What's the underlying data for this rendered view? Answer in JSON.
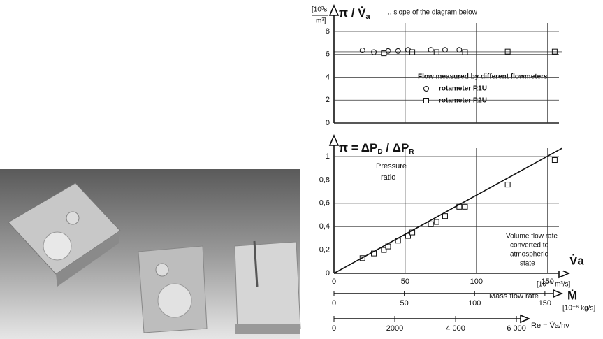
{
  "chart_data": [
    {
      "type": "scatter",
      "title_parts": [
        "π / V̇",
        "a"
      ],
      "subtitle": ".. slope of the diagram below",
      "y_unit_parts": [
        "[10³s",
        "m³]"
      ],
      "legend_title": "Flow measured by different flowmeters",
      "xlim": [
        0,
        158
      ],
      "xticks": [
        0,
        50,
        100,
        150
      ],
      "ylim": [
        0,
        8
      ],
      "yticks": [
        0,
        2,
        4,
        6,
        8
      ],
      "grid": true,
      "series": [
        {
          "name": "rotameter R1U",
          "marker": "circle",
          "color": "#111",
          "x": [
            20,
            28,
            38,
            45,
            52,
            68,
            78,
            88
          ],
          "y": [
            6.35,
            6.2,
            6.3,
            6.3,
            6.4,
            6.4,
            6.4,
            6.4
          ]
        },
        {
          "name": "rotameter R2U",
          "marker": "square",
          "color": "#111",
          "x": [
            35,
            55,
            72,
            92,
            122,
            155
          ],
          "y": [
            6.1,
            6.2,
            6.2,
            6.2,
            6.25,
            6.25
          ]
        },
        {
          "type": "line",
          "color": "#111",
          "x": [
            0,
            160
          ],
          "y": [
            6.2,
            6.2
          ]
        }
      ]
    },
    {
      "type": "scatter",
      "title_parts": [
        "π = ΔP",
        "D",
        " / ΔP",
        "R"
      ],
      "annotation": [
        "Pressure",
        "ratio"
      ],
      "x_note": [
        "Volume flow rate",
        "converted to",
        "atmospheric",
        "state"
      ],
      "x_label": "V̇a",
      "x_unit": "[10⁻⁶ m³/s]",
      "xlim": [
        0,
        158
      ],
      "xticks": [
        0,
        50,
        100,
        150
      ],
      "ylim": [
        0,
        1
      ],
      "yticks": [
        0,
        {
          "value": 0.2,
          "label": "0,2"
        },
        {
          "value": 0.4,
          "label": "0,4"
        },
        {
          "value": 0.6,
          "label": "0,6"
        },
        {
          "value": 0.8,
          "label": "0,8"
        },
        1
      ],
      "grid": true,
      "series": [
        {
          "marker": "square",
          "color": "#111",
          "x": [
            20,
            28,
            35,
            38,
            45,
            52,
            55,
            68,
            72,
            78,
            88,
            92,
            122,
            155
          ],
          "y": [
            0.13,
            0.17,
            0.2,
            0.23,
            0.28,
            0.32,
            0.35,
            0.42,
            0.44,
            0.49,
            0.57,
            0.57,
            0.76,
            0.97
          ]
        },
        {
          "type": "line",
          "color": "#111",
          "x": [
            0,
            160
          ],
          "y": [
            0,
            1.07
          ]
        }
      ],
      "extra_axes": [
        {
          "label": "Mass flow rate",
          "symbol": "Ṁ",
          "unit": "[10⁻⁶ kg/s]",
          "xlim": [
            0,
            160
          ],
          "xticks": [
            0,
            50,
            100,
            150
          ]
        },
        {
          "symbol": "Re = V̇a/hν",
          "xlim": [
            0,
            7400
          ],
          "xticks": [
            0,
            2000,
            {
              "value": 4000,
              "label": "4 000"
            },
            {
              "value": 6000,
              "label": "6 000"
            }
          ]
        }
      ]
    }
  ]
}
